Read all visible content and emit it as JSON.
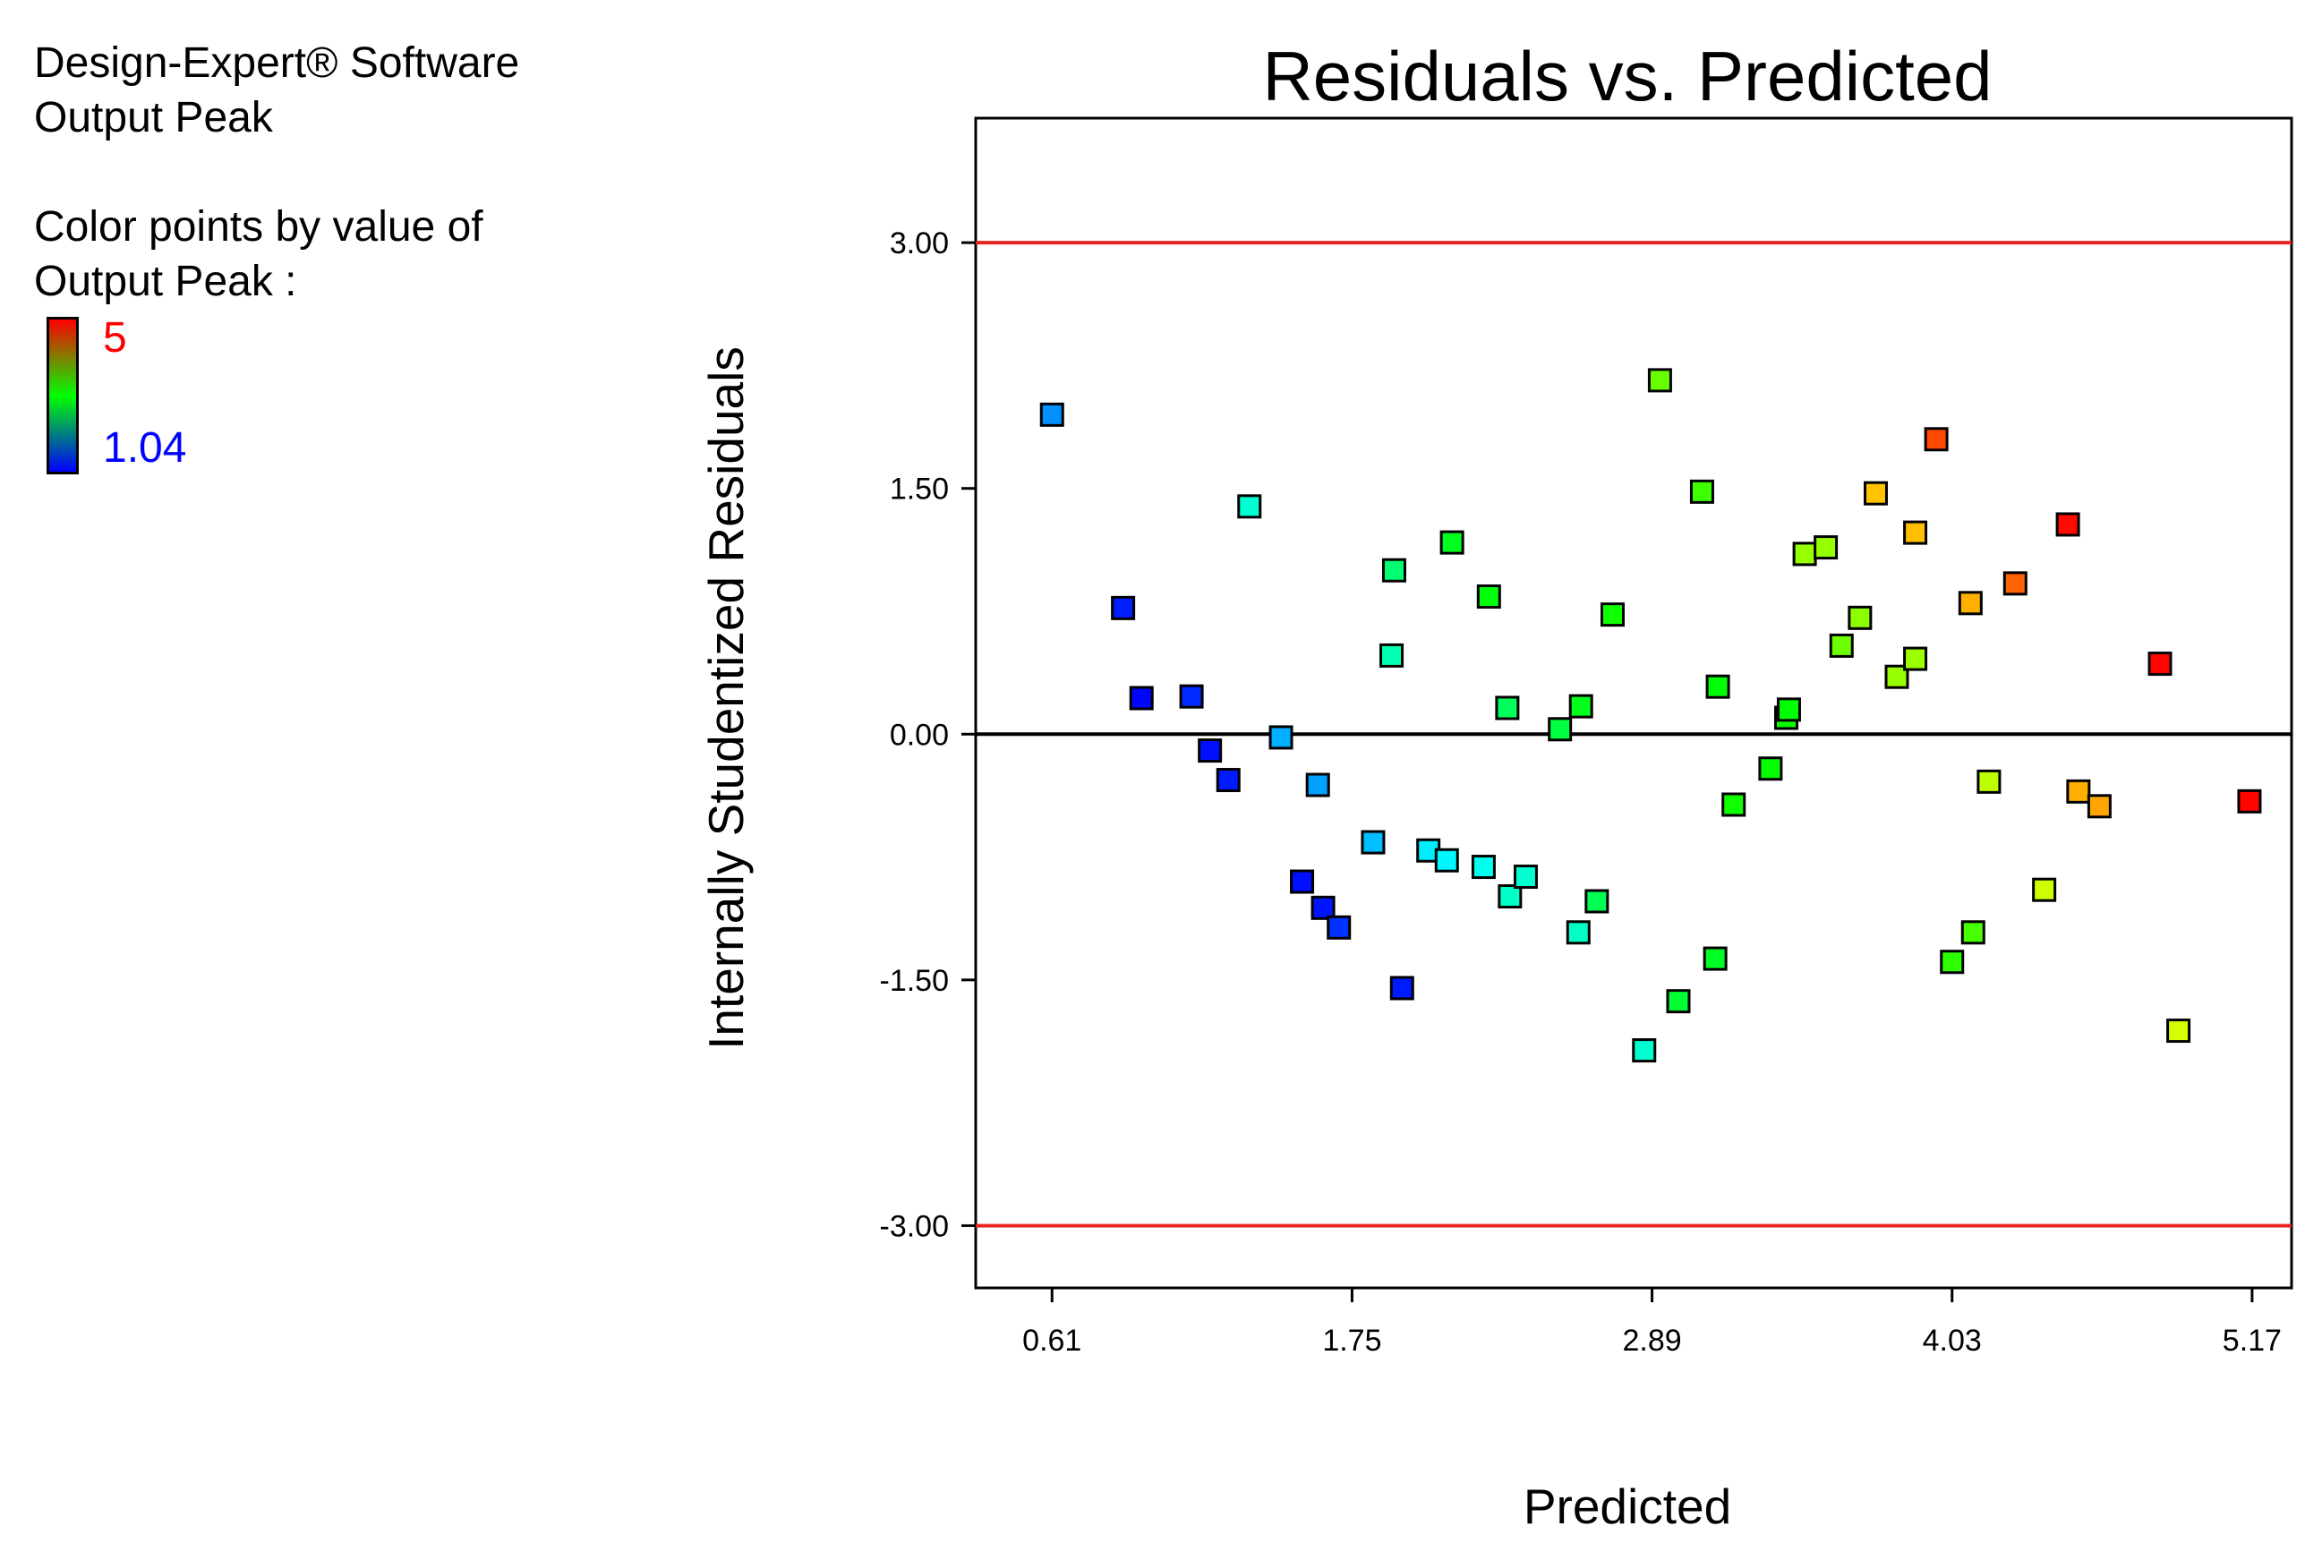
{
  "legend": {
    "software": "Design-Expert® Software",
    "response": "Output Peak",
    "color_by_line1": "Color points by value of",
    "color_by_line2": "Output Peak :",
    "scale_max": "5",
    "scale_min": "1.04",
    "scale_colors": {
      "high": "#ff0000",
      "mid": "#00ff00",
      "low": "#0000ff"
    }
  },
  "chart_data": {
    "type": "scatter",
    "title": "Residuals vs. Predicted",
    "xlabel": "Predicted",
    "ylabel": "Internally Studentized Residuals",
    "xlim": [
      0.32,
      5.32
    ],
    "ylim": [
      -3.38,
      3.76
    ],
    "x_ticks": [
      0.61,
      1.75,
      2.89,
      4.03,
      5.17
    ],
    "x_tick_labels": [
      "0.61",
      "1.75",
      "2.89",
      "4.03",
      "5.17"
    ],
    "y_ticks": [
      3.0,
      1.5,
      0.0,
      -1.5,
      -3.0
    ],
    "y_tick_labels": [
      "3.00",
      "1.50",
      "0.00",
      "-1.50",
      "-3.00"
    ],
    "reference_lines": [
      {
        "y": 3.0,
        "color": "#e8231f"
      },
      {
        "y": 0.0,
        "color": "#000000"
      },
      {
        "y": -3.0,
        "color": "#e8231f"
      }
    ],
    "color_range": [
      1.04,
      5.0
    ],
    "points": [
      {
        "x": 0.61,
        "y": 1.95,
        "c": 1.6
      },
      {
        "x": 0.88,
        "y": 0.77,
        "c": 1.16
      },
      {
        "x": 0.95,
        "y": 0.22,
        "c": 1.06
      },
      {
        "x": 1.14,
        "y": 0.23,
        "c": 1.2
      },
      {
        "x": 1.21,
        "y": -0.1,
        "c": 1.1
      },
      {
        "x": 1.28,
        "y": -0.28,
        "c": 1.14
      },
      {
        "x": 1.36,
        "y": 1.39,
        "c": 2.2
      },
      {
        "x": 1.48,
        "y": -0.02,
        "c": 1.72
      },
      {
        "x": 1.56,
        "y": -0.9,
        "c": 1.1
      },
      {
        "x": 1.62,
        "y": -0.31,
        "c": 1.66
      },
      {
        "x": 1.64,
        "y": -1.06,
        "c": 1.12
      },
      {
        "x": 1.7,
        "y": -1.18,
        "c": 1.24
      },
      {
        "x": 1.83,
        "y": -0.66,
        "c": 1.78
      },
      {
        "x": 1.9,
        "y": 0.48,
        "c": 2.34
      },
      {
        "x": 1.91,
        "y": 1.0,
        "c": 2.58
      },
      {
        "x": 1.94,
        "y": -1.55,
        "c": 1.14
      },
      {
        "x": 2.04,
        "y": -0.71,
        "c": 1.96
      },
      {
        "x": 2.11,
        "y": -0.77,
        "c": 2.0
      },
      {
        "x": 2.13,
        "y": 1.17,
        "c": 2.9
      },
      {
        "x": 2.25,
        "y": -0.81,
        "c": 2.1
      },
      {
        "x": 2.27,
        "y": 0.84,
        "c": 2.98
      },
      {
        "x": 2.34,
        "y": 0.16,
        "c": 2.66
      },
      {
        "x": 2.35,
        "y": -0.99,
        "c": 2.24
      },
      {
        "x": 2.41,
        "y": -0.87,
        "c": 2.2
      },
      {
        "x": 2.54,
        "y": 0.03,
        "c": 2.78
      },
      {
        "x": 2.61,
        "y": -1.21,
        "c": 2.26
      },
      {
        "x": 2.62,
        "y": 0.17,
        "c": 2.92
      },
      {
        "x": 2.68,
        "y": -1.02,
        "c": 2.7
      },
      {
        "x": 2.74,
        "y": 0.73,
        "c": 3.08
      },
      {
        "x": 2.86,
        "y": -1.93,
        "c": 2.22
      },
      {
        "x": 2.92,
        "y": 2.16,
        "c": 3.42
      },
      {
        "x": 2.99,
        "y": -1.63,
        "c": 2.82
      },
      {
        "x": 3.08,
        "y": 1.48,
        "c": 3.26
      },
      {
        "x": 3.13,
        "y": -1.37,
        "c": 2.88
      },
      {
        "x": 3.14,
        "y": 0.29,
        "c": 3.0
      },
      {
        "x": 3.2,
        "y": -0.43,
        "c": 3.08
      },
      {
        "x": 3.34,
        "y": -0.21,
        "c": 3.04
      },
      {
        "x": 3.4,
        "y": 0.1,
        "c": 3.06
      },
      {
        "x": 3.41,
        "y": 0.15,
        "c": 3.02
      },
      {
        "x": 3.47,
        "y": 1.1,
        "c": 3.6
      },
      {
        "x": 3.55,
        "y": 1.14,
        "c": 3.6
      },
      {
        "x": 3.61,
        "y": 0.54,
        "c": 3.44
      },
      {
        "x": 3.68,
        "y": 0.71,
        "c": 3.56
      },
      {
        "x": 3.74,
        "y": 1.47,
        "c": 4.24
      },
      {
        "x": 3.82,
        "y": 0.35,
        "c": 3.6
      },
      {
        "x": 3.89,
        "y": 1.23,
        "c": 4.26
      },
      {
        "x": 3.89,
        "y": 0.46,
        "c": 3.62
      },
      {
        "x": 3.97,
        "y": 1.8,
        "c": 4.72
      },
      {
        "x": 4.03,
        "y": -1.39,
        "c": 3.2
      },
      {
        "x": 4.1,
        "y": 0.8,
        "c": 4.32
      },
      {
        "x": 4.11,
        "y": -1.21,
        "c": 3.3
      },
      {
        "x": 4.17,
        "y": -0.29,
        "c": 3.76
      },
      {
        "x": 4.27,
        "y": 0.92,
        "c": 4.62
      },
      {
        "x": 4.38,
        "y": -0.95,
        "c": 3.82
      },
      {
        "x": 4.47,
        "y": 1.28,
        "c": 4.96
      },
      {
        "x": 4.51,
        "y": -0.35,
        "c": 4.32
      },
      {
        "x": 4.59,
        "y": -0.44,
        "c": 4.36
      },
      {
        "x": 4.82,
        "y": 0.43,
        "c": 4.98
      },
      {
        "x": 4.89,
        "y": -1.81,
        "c": 3.84
      },
      {
        "x": 5.16,
        "y": -0.41,
        "c": 4.98
      }
    ]
  }
}
